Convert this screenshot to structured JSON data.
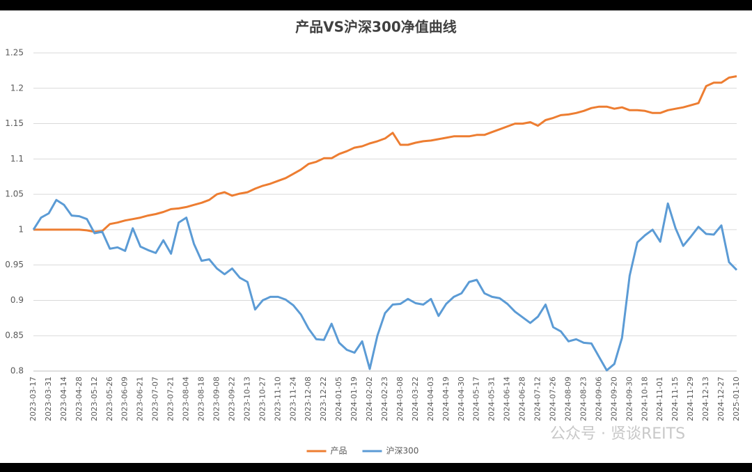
{
  "chart_data": {
    "type": "line",
    "title": "产品VS沪深300净值曲线",
    "categories": [
      "2023-03-17",
      null,
      "2023-03-31",
      null,
      "2023-04-14",
      null,
      "2023-04-28",
      null,
      "2023-05-12",
      null,
      "2023-05-26",
      null,
      "2023-06-09",
      null,
      "2023-06-21",
      null,
      "2023-07-07",
      null,
      "2023-07-21",
      null,
      "2023-08-04",
      null,
      "2023-08-18",
      null,
      "2023-09-08",
      null,
      "2023-09-22",
      null,
      "2023-10-13",
      null,
      "2023-10-27",
      null,
      "2023-11-10",
      null,
      "2023-11-24",
      null,
      "2023-12-08",
      null,
      "2023-12-22",
      null,
      "2024-01-05",
      null,
      "2024-01-19",
      null,
      "2024-02-02",
      null,
      "2024-02-23",
      null,
      "2024-03-08",
      null,
      "2024-03-22",
      null,
      "2024-04-03",
      null,
      "2024-04-19",
      null,
      "2024-04-30",
      null,
      "2024-05-17",
      null,
      "2024-05-31",
      null,
      "2024-06-14",
      null,
      "2024-06-28",
      null,
      "2024-07-12",
      null,
      "2024-07-26",
      null,
      "2024-08-09",
      null,
      "2024-08-23",
      null,
      "2024-09-06",
      null,
      "2024-09-20",
      null,
      "2024-09-30",
      null,
      "2024-10-18",
      null,
      "2024-11-01",
      null,
      "2024-11-15",
      null,
      "2024-11-29",
      null,
      "2024-12-13",
      null,
      "2024-12-27",
      null,
      "2025-01-10"
    ],
    "series": [
      {
        "name": "产品",
        "color": "#ed7d31",
        "values": [
          1.0,
          1.0,
          1.0,
          1.0,
          1.0,
          1.0,
          1.0,
          0.999,
          0.997,
          0.998,
          1.008,
          1.01,
          1.013,
          1.015,
          1.017,
          1.02,
          1.022,
          1.025,
          1.029,
          1.03,
          1.032,
          1.035,
          1.038,
          1.042,
          1.05,
          1.053,
          1.048,
          1.051,
          1.053,
          1.058,
          1.062,
          1.065,
          1.069,
          1.073,
          1.079,
          1.085,
          1.093,
          1.096,
          1.101,
          1.101,
          1.107,
          1.111,
          1.116,
          1.118,
          1.122,
          1.125,
          1.129,
          1.137,
          1.12,
          1.12,
          1.123,
          1.125,
          1.126,
          1.128,
          1.13,
          1.132,
          1.132,
          1.132,
          1.134,
          1.134,
          1.138,
          1.142,
          1.146,
          1.15,
          1.15,
          1.152,
          1.147,
          1.155,
          1.158,
          1.162,
          1.163,
          1.165,
          1.168,
          1.172,
          1.174,
          1.174,
          1.171,
          1.173,
          1.169,
          1.169,
          1.168,
          1.165,
          1.165,
          1.169,
          1.171,
          1.173,
          1.176,
          1.179,
          1.203,
          1.208,
          1.208,
          1.215,
          1.217
        ]
      },
      {
        "name": "沪深300",
        "color": "#5b9bd5",
        "values": [
          1.0,
          1.017,
          1.023,
          1.042,
          1.035,
          1.02,
          1.019,
          1.015,
          0.995,
          0.997,
          0.973,
          0.975,
          0.97,
          1.002,
          0.976,
          0.971,
          0.967,
          0.985,
          0.966,
          1.01,
          1.017,
          0.98,
          0.956,
          0.958,
          0.945,
          0.937,
          0.945,
          0.932,
          0.926,
          0.887,
          0.9,
          0.905,
          0.905,
          0.901,
          0.893,
          0.88,
          0.86,
          0.845,
          0.844,
          0.867,
          0.84,
          0.83,
          0.826,
          0.842,
          0.803,
          0.85,
          0.882,
          0.894,
          0.895,
          0.902,
          0.896,
          0.894,
          0.902,
          0.878,
          0.895,
          0.905,
          0.91,
          0.926,
          0.929,
          0.91,
          0.905,
          0.903,
          0.895,
          0.884,
          0.876,
          0.868,
          0.877,
          0.894,
          0.862,
          0.856,
          0.842,
          0.845,
          0.84,
          0.839,
          0.82,
          0.801,
          0.81,
          0.847,
          0.935,
          0.982,
          0.992,
          1.0,
          0.983,
          1.037,
          1.002,
          0.977,
          0.99,
          1.004,
          0.994,
          0.993,
          1.006,
          0.954,
          0.943
        ]
      }
    ],
    "ylim": [
      0.8,
      1.25
    ],
    "yticks": [
      0.8,
      0.85,
      0.9,
      0.95,
      1,
      1.05,
      1.1,
      1.15,
      1.2,
      1.25
    ],
    "grid": true,
    "legend": "bottom",
    "watermark": "公众号 · 贤谈REITS"
  }
}
